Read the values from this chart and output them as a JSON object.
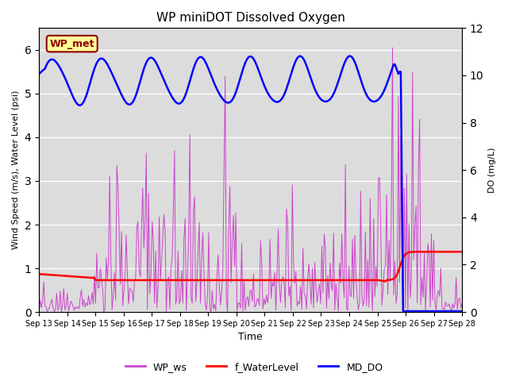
{
  "title": "WP miniDOT Dissolved Oxygen",
  "xlabel": "Time",
  "ylabel_left": "Wind Speed (m/s), Water Level (psi)",
  "ylabel_right": "DO (mg/L)",
  "left_ylim": [
    0.0,
    6.5
  ],
  "right_ylim": [
    0,
    12
  ],
  "annotation_text": "WP_met",
  "annotation_color": "#8B0000",
  "annotation_bg": "#FFFF99",
  "bg_color": "#DCDCDC",
  "wp_ws_color": "#CC44CC",
  "f_wl_color": "red",
  "md_do_color": "blue",
  "legend_items": [
    {
      "label": "WP_ws",
      "color": "#CC44CC",
      "linestyle": "-"
    },
    {
      "label": "f_WaterLevel",
      "color": "red",
      "linestyle": "-"
    },
    {
      "label": "MD_DO",
      "color": "blue",
      "linestyle": "-"
    }
  ],
  "x_tick_labels": [
    "Sep 13",
    "Sep 14",
    "Sep 15",
    "Sep 16",
    "Sep 17",
    "Sep 18",
    "Sep 19",
    "Sep 20",
    "Sep 21",
    "Sep 22",
    "Sep 23",
    "Sep 24",
    "Sep 25",
    "Sep 26",
    "Sep 27",
    "Sep 28"
  ],
  "x_tick_positions": [
    0,
    1,
    2,
    3,
    4,
    5,
    6,
    7,
    8,
    9,
    10,
    11,
    12,
    13,
    14,
    15
  ],
  "figsize": [
    6.4,
    4.8
  ],
  "dpi": 100
}
